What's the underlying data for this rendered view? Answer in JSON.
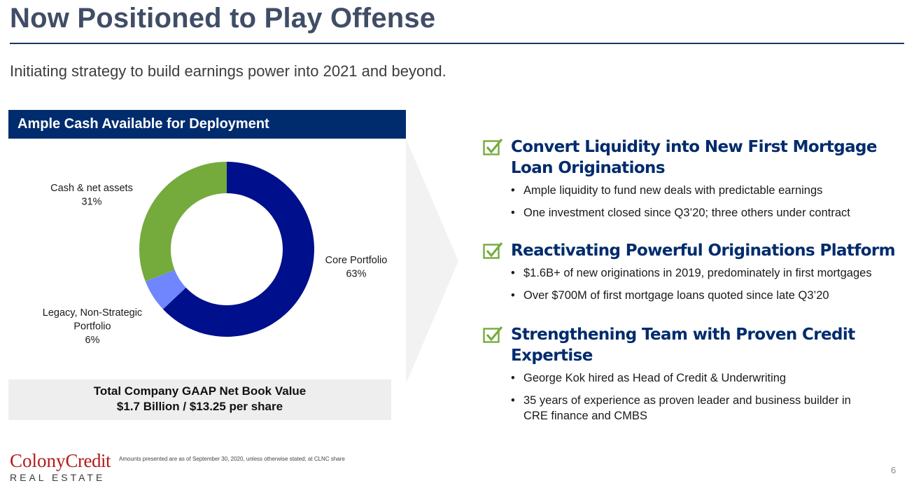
{
  "slide": {
    "title": "Now Positioned to Play Offense",
    "subtitle": "Initiating strategy to build earnings power into 2021 and beyond.",
    "page_number": "6"
  },
  "left_panel": {
    "header": "Ample Cash Available for Deployment",
    "summary_line1": "Total Company GAAP Net Book Value",
    "summary_line2": "$1.7 Billion / $13.25 per share"
  },
  "chart_data": {
    "type": "pie",
    "donut": true,
    "title": "Ample Cash Available for Deployment",
    "start_at": "12 o'clock, clockwise",
    "slices": [
      {
        "label_lines": [
          "Core Portfolio"
        ],
        "value": 63,
        "value_label": "63%",
        "color": "#000f8c"
      },
      {
        "label_lines": [
          "Legacy, Non-Strategic",
          "Portfolio"
        ],
        "value": 6,
        "value_label": "6%",
        "color": "#6f86ff"
      },
      {
        "label_lines": [
          "Cash & net assets"
        ],
        "value": 31,
        "value_label": "31%",
        "color": "#74ab3c"
      }
    ]
  },
  "sections": [
    {
      "title_lines": [
        "Convert Liquidity into New First Mortgage",
        "Loan Originations"
      ],
      "bullets": [
        [
          "Ample liquidity to fund new deals with predictable earnings"
        ],
        [
          "One investment closed since Q3’20; three others under contract"
        ]
      ]
    },
    {
      "title_lines": [
        "Reactivating Powerful Originations Platform"
      ],
      "bullets": [
        [
          "$1.6B+ of new originations in 2019, predominately in first mortgages"
        ],
        [
          "Over $700M of first mortgage loans quoted since late Q3’20"
        ]
      ]
    },
    {
      "title_lines": [
        "Strengthening Team with Proven Credit Expertise"
      ],
      "bullets": [
        [
          "George Kok hired as Head of Credit & Underwriting"
        ],
        [
          "35 years of experience as proven leader and business builder in",
          "CRE finance and CMBS"
        ]
      ]
    }
  ],
  "footer": {
    "logo_word1": "Colony",
    "logo_word2": "Credit",
    "logo_sub": "REAL ESTATE",
    "footnote": "Amounts presented are as of September 30, 2020, unless otherwise stated; at CLNC share"
  },
  "colors": {
    "title": "#404d66",
    "navy": "#002c6e",
    "check_green": "#74ab3c",
    "logo_red": "#b31b1b"
  }
}
